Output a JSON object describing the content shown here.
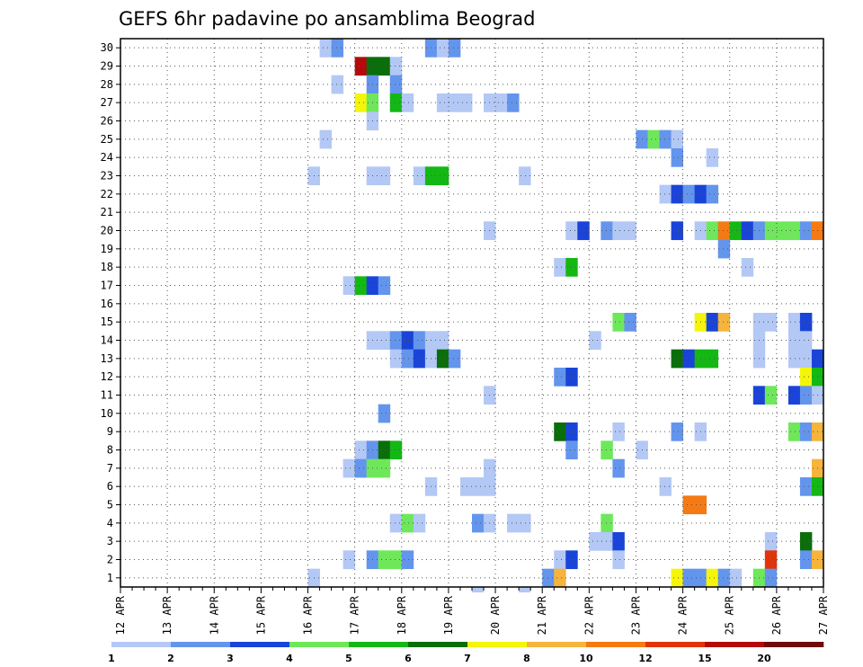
{
  "chart_data": {
    "type": "heatmap",
    "title": "GEFS 6hr padavine po ansamblima Beograd",
    "xlabel": "",
    "ylabel": "",
    "x_ticks": [
      "12 APR",
      "13 APR",
      "14 APR",
      "15 APR",
      "16 APR",
      "17 APR",
      "18 APR",
      "19 APR",
      "20 APR",
      "21 APR",
      "22 APR",
      "23 APR",
      "24 APR",
      "25 APR",
      "26 APR",
      "27 APR"
    ],
    "y_ticks": [
      1,
      2,
      3,
      4,
      5,
      6,
      7,
      8,
      9,
      10,
      11,
      12,
      13,
      14,
      15,
      16,
      17,
      18,
      19,
      20,
      21,
      22,
      23,
      24,
      25,
      26,
      27,
      28,
      29,
      30
    ],
    "xlim_days": [
      0,
      15
    ],
    "steps_per_day": 4,
    "ylim": [
      0.5,
      30.5
    ],
    "grid": true,
    "colorbar": {
      "labels": [
        "1",
        "2",
        "3",
        "4",
        "5",
        "6",
        "7",
        "8",
        "10",
        "12",
        "15",
        "20"
      ],
      "colors": [
        "#b3c8f5",
        "#6495ed",
        "#1a44d8",
        "#6ee85a",
        "#14b814",
        "#0a6e0a",
        "#f5f50a",
        "#f5b43c",
        "#f57a14",
        "#e0340a",
        "#b40a0a",
        "#6e0a0a"
      ]
    },
    "cells": [
      [
        30,
        17,
        1
      ],
      [
        30,
        18,
        2
      ],
      [
        30,
        26,
        2
      ],
      [
        30,
        27,
        1
      ],
      [
        30,
        28,
        2
      ],
      [
        29,
        20,
        11
      ],
      [
        29,
        21,
        6
      ],
      [
        29,
        22,
        6
      ],
      [
        29,
        23,
        1
      ],
      [
        28,
        21,
        2
      ],
      [
        28,
        18,
        1
      ],
      [
        28,
        23,
        2
      ],
      [
        27,
        20,
        7
      ],
      [
        27,
        21,
        4
      ],
      [
        27,
        23,
        5
      ],
      [
        27,
        24,
        1
      ],
      [
        27,
        27,
        1
      ],
      [
        27,
        28,
        1
      ],
      [
        27,
        29,
        1
      ],
      [
        27,
        31,
        1
      ],
      [
        27,
        32,
        1
      ],
      [
        27,
        33,
        2
      ],
      [
        26,
        21,
        1
      ],
      [
        25,
        17,
        1
      ],
      [
        25,
        44,
        2
      ],
      [
        25,
        45,
        4
      ],
      [
        25,
        46,
        2
      ],
      [
        25,
        47,
        1
      ],
      [
        24,
        47,
        2
      ],
      [
        24,
        50,
        1
      ],
      [
        23,
        16,
        1
      ],
      [
        23,
        21,
        1
      ],
      [
        23,
        22,
        1
      ],
      [
        23,
        34,
        1
      ],
      [
        23,
        25,
        1
      ],
      [
        23,
        26,
        5
      ],
      [
        23,
        27,
        5
      ],
      [
        22,
        46,
        1
      ],
      [
        22,
        47,
        3
      ],
      [
        22,
        48,
        2
      ],
      [
        22,
        49,
        3
      ],
      [
        22,
        50,
        2
      ],
      [
        20,
        31,
        1
      ],
      [
        20,
        38,
        1
      ],
      [
        20,
        39,
        3
      ],
      [
        20,
        41,
        2
      ],
      [
        20,
        42,
        1
      ],
      [
        20,
        43,
        1
      ],
      [
        20,
        47,
        3
      ],
      [
        20,
        49,
        1
      ],
      [
        20,
        50,
        4
      ],
      [
        20,
        51,
        9
      ],
      [
        20,
        52,
        5
      ],
      [
        20,
        53,
        3
      ],
      [
        20,
        54,
        2
      ],
      [
        20,
        55,
        4
      ],
      [
        20,
        56,
        4
      ],
      [
        20,
        57,
        4
      ],
      [
        20,
        58,
        2
      ],
      [
        20,
        59,
        9
      ],
      [
        19,
        51,
        2
      ],
      [
        18,
        37,
        1
      ],
      [
        18,
        38,
        5
      ],
      [
        18,
        53,
        1
      ],
      [
        17,
        19,
        1
      ],
      [
        17,
        20,
        5
      ],
      [
        17,
        21,
        3
      ],
      [
        17,
        22,
        2
      ],
      [
        15,
        42,
        4
      ],
      [
        15,
        43,
        2
      ],
      [
        15,
        49,
        7
      ],
      [
        15,
        50,
        3
      ],
      [
        15,
        51,
        8
      ],
      [
        15,
        54,
        1
      ],
      [
        15,
        55,
        1
      ],
      [
        15,
        57,
        1
      ],
      [
        15,
        58,
        3
      ],
      [
        14,
        21,
        1
      ],
      [
        14,
        22,
        1
      ],
      [
        14,
        23,
        2
      ],
      [
        14,
        24,
        3
      ],
      [
        14,
        25,
        2
      ],
      [
        14,
        26,
        1
      ],
      [
        14,
        27,
        1
      ],
      [
        14,
        40,
        1
      ],
      [
        14,
        54,
        1
      ],
      [
        14,
        57,
        1
      ],
      [
        14,
        58,
        1
      ],
      [
        13,
        23,
        1
      ],
      [
        13,
        24,
        2
      ],
      [
        13,
        25,
        3
      ],
      [
        13,
        26,
        1
      ],
      [
        13,
        27,
        6
      ],
      [
        13,
        28,
        2
      ],
      [
        13,
        47,
        6
      ],
      [
        13,
        48,
        3
      ],
      [
        13,
        49,
        5
      ],
      [
        13,
        50,
        5
      ],
      [
        13,
        54,
        1
      ],
      [
        13,
        57,
        1
      ],
      [
        13,
        58,
        1
      ],
      [
        13,
        59,
        3
      ],
      [
        12,
        37,
        2
      ],
      [
        12,
        38,
        3
      ],
      [
        12,
        58,
        7
      ],
      [
        12,
        59,
        5
      ],
      [
        11,
        31,
        1
      ],
      [
        11,
        54,
        3
      ],
      [
        11,
        55,
        4
      ],
      [
        11,
        57,
        3
      ],
      [
        11,
        58,
        2
      ],
      [
        11,
        59,
        1
      ],
      [
        10,
        22,
        2
      ],
      [
        9,
        37,
        6
      ],
      [
        9,
        38,
        3
      ],
      [
        9,
        42,
        1
      ],
      [
        9,
        47,
        2
      ],
      [
        9,
        49,
        1
      ],
      [
        9,
        57,
        4
      ],
      [
        9,
        58,
        2
      ],
      [
        9,
        59,
        8
      ],
      [
        8,
        20,
        1
      ],
      [
        8,
        21,
        2
      ],
      [
        8,
        22,
        6
      ],
      [
        8,
        23,
        5
      ],
      [
        8,
        38,
        2
      ],
      [
        8,
        41,
        4
      ],
      [
        8,
        44,
        1
      ],
      [
        7,
        19,
        1
      ],
      [
        7,
        20,
        2
      ],
      [
        7,
        21,
        4
      ],
      [
        7,
        22,
        4
      ],
      [
        7,
        31,
        1
      ],
      [
        7,
        42,
        2
      ],
      [
        7,
        59,
        8
      ],
      [
        6,
        26,
        1
      ],
      [
        6,
        29,
        1
      ],
      [
        6,
        30,
        1
      ],
      [
        6,
        31,
        1
      ],
      [
        6,
        46,
        1
      ],
      [
        6,
        58,
        2
      ],
      [
        6,
        59,
        5
      ],
      [
        5,
        48,
        9
      ],
      [
        5,
        49,
        9
      ],
      [
        4,
        23,
        1
      ],
      [
        4,
        24,
        4
      ],
      [
        4,
        25,
        1
      ],
      [
        4,
        30,
        2
      ],
      [
        4,
        31,
        1
      ],
      [
        4,
        33,
        1
      ],
      [
        4,
        34,
        1
      ],
      [
        4,
        41,
        4
      ],
      [
        3,
        40,
        1
      ],
      [
        3,
        41,
        1
      ],
      [
        3,
        42,
        3
      ],
      [
        3,
        55,
        1
      ],
      [
        3,
        58,
        6
      ],
      [
        2,
        19,
        1
      ],
      [
        2,
        21,
        2
      ],
      [
        2,
        22,
        4
      ],
      [
        2,
        23,
        4
      ],
      [
        2,
        24,
        2
      ],
      [
        2,
        37,
        1
      ],
      [
        2,
        38,
        3
      ],
      [
        2,
        42,
        1
      ],
      [
        2,
        55,
        10
      ],
      [
        2,
        58,
        2
      ],
      [
        2,
        59,
        8
      ],
      [
        1,
        16,
        1
      ],
      [
        1,
        36,
        2
      ],
      [
        1,
        37,
        8
      ],
      [
        1,
        47,
        7
      ],
      [
        1,
        48,
        2
      ],
      [
        1,
        49,
        2
      ],
      [
        1,
        50,
        7
      ],
      [
        1,
        51,
        2
      ],
      [
        1,
        52,
        1
      ],
      [
        1,
        54,
        4
      ],
      [
        1,
        55,
        2
      ]
    ],
    "bottom_marks": [
      [
        0,
        30
      ],
      [
        0,
        34
      ]
    ]
  }
}
